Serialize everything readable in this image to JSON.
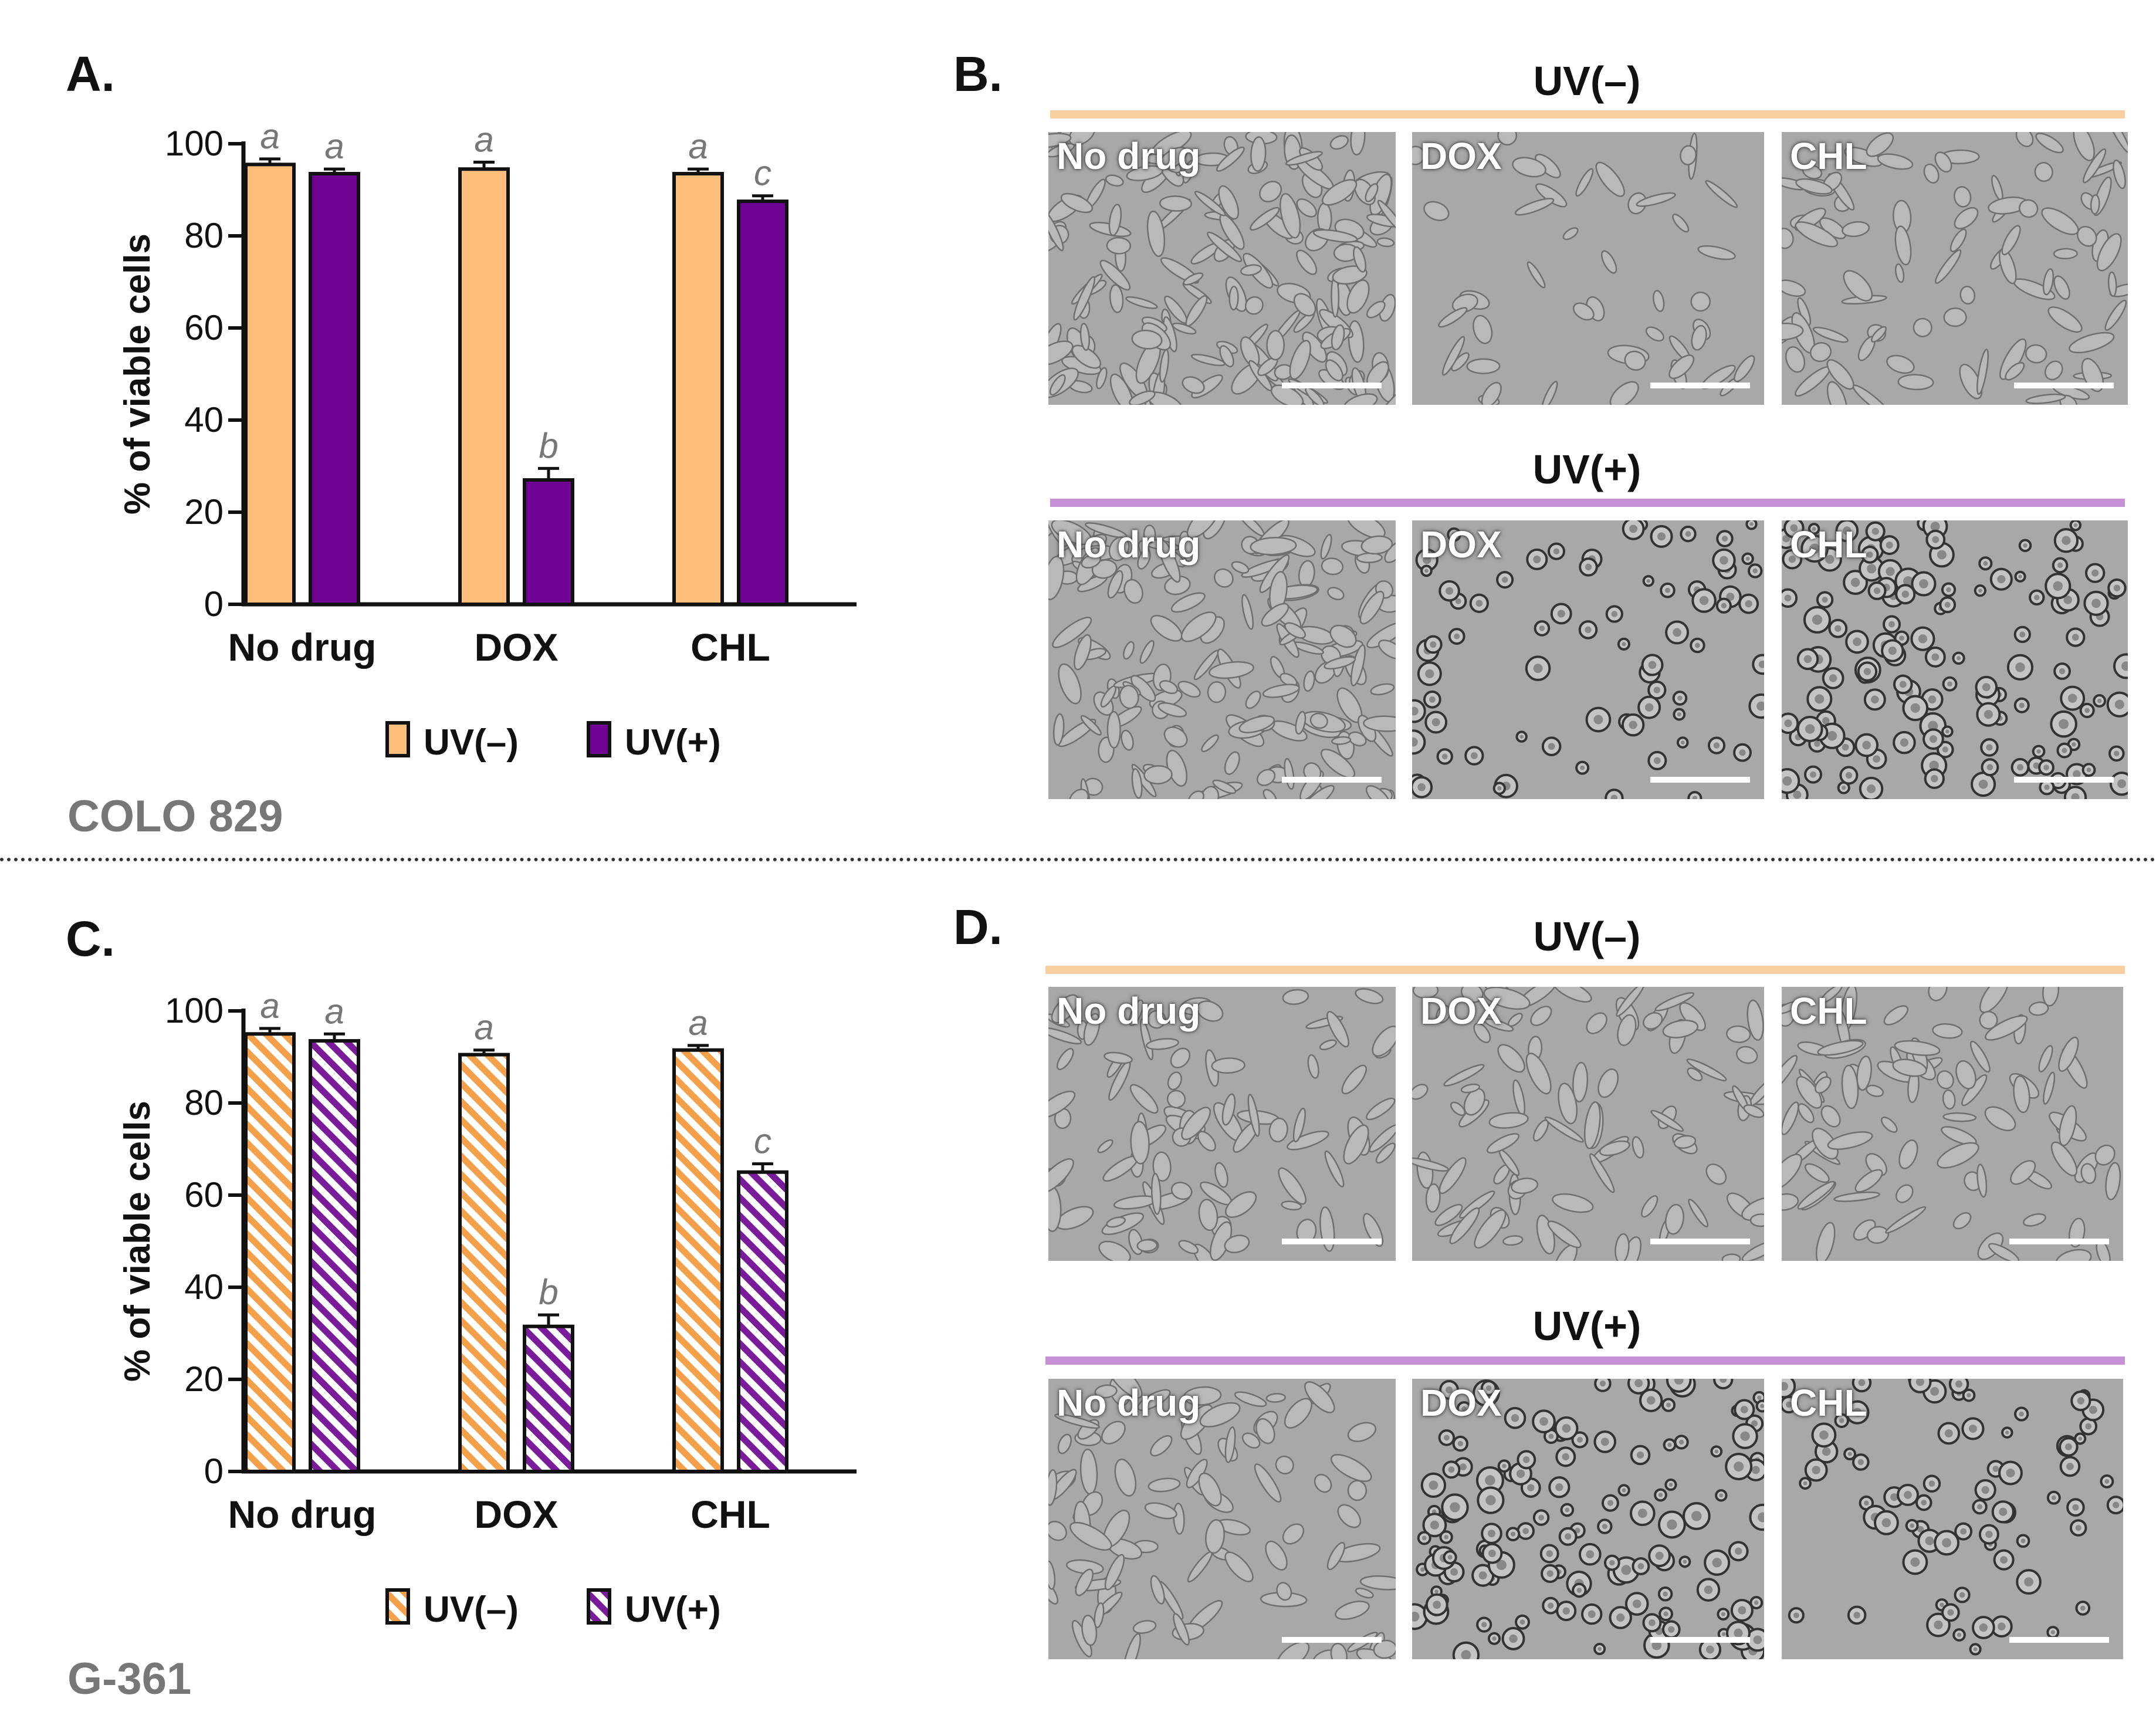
{
  "panels": {
    "a": {
      "letter": "A.",
      "cell_line": "COLO 829"
    },
    "b": {
      "letter": "B."
    },
    "c": {
      "letter": "C.",
      "cell_line": "G-361"
    },
    "d": {
      "letter": "D."
    }
  },
  "colors": {
    "uv_minus": "#FDBE7C",
    "uv_plus": "#6E0394",
    "uv_minus_line": "#F7CFA0",
    "uv_plus_line": "#C691D6",
    "hatch_plus": "#7A1C9A",
    "hatch_minus": "#F2A04A"
  },
  "chart_data": [
    {
      "type": "bar",
      "panel": "A.",
      "categories": [
        "No drug",
        "DOX",
        "CHL"
      ],
      "ylabel": "% of viable cells",
      "ylim": [
        0,
        100
      ],
      "yticks": [
        0,
        20,
        40,
        60,
        80,
        100
      ],
      "pattern": "solid",
      "series": [
        {
          "name": "UV(–)",
          "values": [
            95.5,
            94.5,
            93.5
          ],
          "errors": [
            1.2,
            1.5,
            1.0
          ],
          "letters": [
            "a",
            "a",
            "a"
          ]
        },
        {
          "name": "UV(+)",
          "values": [
            93.5,
            27,
            87.5
          ],
          "errors": [
            1.0,
            2.5,
            1.2
          ],
          "letters": [
            "a",
            "b",
            "c"
          ]
        }
      ],
      "legend": "bottom"
    },
    {
      "type": "bar",
      "panel": "C.",
      "categories": [
        "No drug",
        "DOX",
        "CHL"
      ],
      "ylabel": "% of viable cells",
      "ylim": [
        0,
        100
      ],
      "yticks": [
        0,
        20,
        40,
        60,
        80,
        100
      ],
      "pattern": "hatched",
      "series": [
        {
          "name": "UV(–)",
          "values": [
            95,
            90.5,
            91.5
          ],
          "errors": [
            1.2,
            1.0,
            1.0
          ],
          "letters": [
            "a",
            "a",
            "a"
          ]
        },
        {
          "name": "UV(+)",
          "values": [
            93.5,
            31.5,
            65
          ],
          "errors": [
            1.5,
            2.5,
            1.8
          ],
          "letters": [
            "a",
            "b",
            "c"
          ]
        }
      ],
      "legend": "bottom"
    }
  ],
  "micrographs": {
    "b": {
      "rows": [
        {
          "header": "UV(–)",
          "labels": [
            "No drug",
            "DOX",
            "CHL"
          ]
        },
        {
          "header": "UV(+)",
          "labels": [
            "No drug",
            "DOX",
            "CHL"
          ]
        }
      ]
    },
    "d": {
      "rows": [
        {
          "header": "UV(–)",
          "labels": [
            "No drug",
            "DOX",
            "CHL"
          ]
        },
        {
          "header": "UV(+)",
          "labels": [
            "No drug",
            "DOX",
            "CHL"
          ]
        }
      ]
    }
  }
}
